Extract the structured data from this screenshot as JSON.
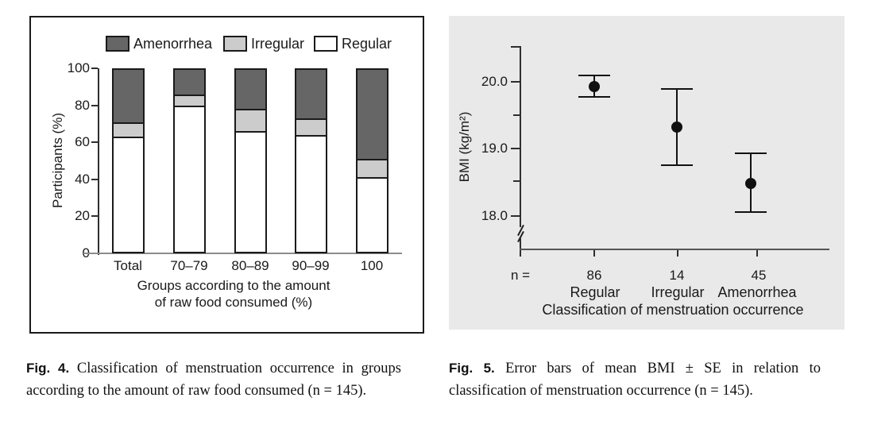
{
  "figure4": {
    "caption_label": "Fig. 4.",
    "caption_text": "Classification of menstruation occurrence in groups according to the amount of raw food consumed (n = 145)."
  },
  "figure5": {
    "caption_label": "Fig. 5.",
    "caption_text": "Error bars of mean BMI ± SE in relation to classification of menstruation occurrence (n = 145)."
  },
  "chart_data": [
    {
      "type": "bar",
      "stacked": true,
      "categories": [
        "Total",
        "70–79",
        "80–89",
        "90–99",
        "100"
      ],
      "series": [
        {
          "name": "Regular",
          "color": "#ffffff",
          "values": [
            63,
            80,
            66,
            64,
            41
          ]
        },
        {
          "name": "Irregular",
          "color": "#cccccc",
          "values": [
            8,
            6,
            12,
            9,
            10
          ]
        },
        {
          "name": "Amenorrhea",
          "color": "#666666",
          "values": [
            29,
            14,
            22,
            27,
            49
          ]
        }
      ],
      "legend_order": [
        "Amenorrhea",
        "Irregular",
        "Regular"
      ],
      "legend_position": "top",
      "ylabel": "Participants (%)",
      "xlabel_lines": [
        "Groups according to the amount",
        "of raw food consumed (%)"
      ],
      "yticks": [
        0,
        20,
        40,
        60,
        80,
        100
      ],
      "ylim": [
        0,
        100
      ],
      "grid": false
    },
    {
      "type": "scatter",
      "subtype": "error-bar",
      "categories": [
        "Regular",
        "Irregular",
        "Amenorrhea"
      ],
      "n_label": "n =",
      "n_values": [
        86,
        14,
        45
      ],
      "points": [
        {
          "category": "Regular",
          "mean": 19.93,
          "upper": 20.1,
          "lower": 19.77
        },
        {
          "category": "Irregular",
          "mean": 19.33,
          "upper": 19.89,
          "lower": 18.76
        },
        {
          "category": "Amenorrhea",
          "mean": 18.49,
          "upper": 18.93,
          "lower": 18.06
        }
      ],
      "ylabel": "BMI (kg/m²)",
      "xlabel": "Classification of menstruation occurrence",
      "ytick_labels": [
        "20.0",
        "19.0",
        "18.0"
      ],
      "minor_yticks": [
        19.5,
        18.5
      ],
      "ylim": [
        17.6,
        20.55
      ],
      "axis_break": true,
      "grid": false,
      "panel_color": "#e9e9e9"
    }
  ]
}
